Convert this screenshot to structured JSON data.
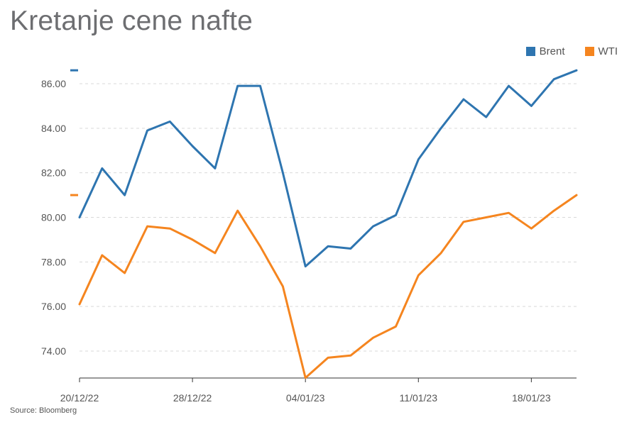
{
  "title": "Kretanje cene nafte",
  "source": "Source: Bloomberg",
  "colors": {
    "brent": "#2e75b0",
    "wti": "#f5851f",
    "grid": "#d9d9d9",
    "axis": "#333333"
  },
  "chart_data": {
    "type": "line",
    "title": "Kretanje cene nafte",
    "ylim": [
      72.8,
      86.7
    ],
    "y_ticks": [
      "74.00",
      "76.00",
      "78.00",
      "80.00",
      "82.00",
      "84.00",
      "86.00"
    ],
    "x_tick_labels": [
      {
        "index": 0,
        "label": "20/12/22"
      },
      {
        "index": 5,
        "label": "28/12/22"
      },
      {
        "index": 10,
        "label": "04/01/23"
      },
      {
        "index": 15,
        "label": "11/01/23"
      },
      {
        "index": 20,
        "label": "18/01/23"
      }
    ],
    "grid": true,
    "legend": "top-right",
    "series": [
      {
        "name": "Brent",
        "last_value": 86.6,
        "values": [
          80.0,
          82.2,
          81.0,
          83.9,
          84.3,
          83.2,
          82.2,
          85.9,
          85.9,
          82.0,
          77.8,
          78.7,
          78.6,
          79.6,
          80.1,
          82.6,
          84.0,
          85.3,
          84.5,
          85.9,
          85.0,
          86.2,
          86.6
        ]
      },
      {
        "name": "WTI",
        "last_value": 81.0,
        "values": [
          76.1,
          78.3,
          77.5,
          79.6,
          79.5,
          79.0,
          78.4,
          80.3,
          78.7,
          76.9,
          72.8,
          73.7,
          73.8,
          74.6,
          75.1,
          77.4,
          78.4,
          79.8,
          80.0,
          80.2,
          79.5,
          80.3,
          81.0
        ]
      }
    ]
  }
}
